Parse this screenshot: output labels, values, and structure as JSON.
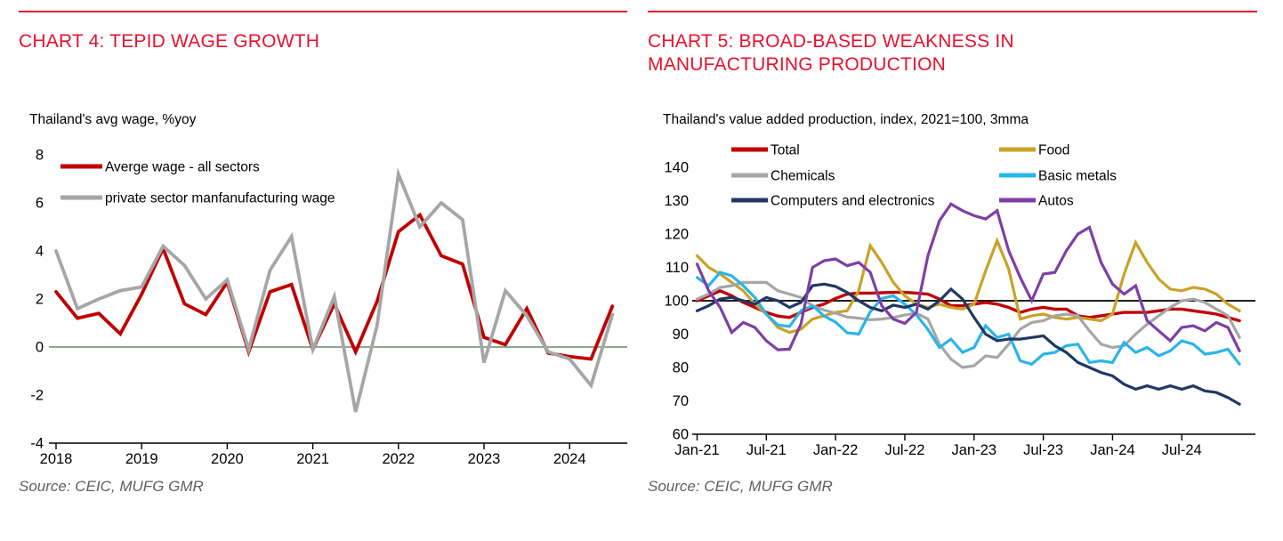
{
  "theme": {
    "accent_red": "#E8112D",
    "muted_gray": "#5F5F5F",
    "axis_black": "#000000",
    "background": "#FFFFFF"
  },
  "source_line": "Source: CEIC, MUFG GMR",
  "chart_data": [
    {
      "type": "line",
      "title": "CHART 4: TEPID WAGE GROWTH",
      "subtitle": "Thailand's avg wage, %yoy",
      "source": "Source: CEIC, MUFG GMR",
      "xlabel": "",
      "ylabel": "",
      "ylim": [
        -4,
        8
      ],
      "ytick_values": [
        8,
        6,
        4,
        2,
        0,
        -2,
        -4
      ],
      "x_tick_labels": [
        "2018",
        "2019",
        "2020",
        "2021",
        "2022",
        "2023",
        "2024"
      ],
      "x_tick_every": 4,
      "grid": false,
      "legend_position": "top-left-inside",
      "reference_line": {
        "value": 0,
        "color": "#7E9A85"
      },
      "categories": [
        "2018Q1",
        "2018Q2",
        "2018Q3",
        "2018Q4",
        "2019Q1",
        "2019Q2",
        "2019Q3",
        "2019Q4",
        "2020Q1",
        "2020Q2",
        "2020Q3",
        "2020Q4",
        "2021Q1",
        "2021Q2",
        "2021Q3",
        "2021Q4",
        "2022Q1",
        "2022Q2",
        "2022Q3",
        "2022Q4",
        "2023Q1",
        "2023Q2",
        "2023Q3",
        "2023Q4",
        "2024Q1",
        "2024Q2",
        "2024Q3"
      ],
      "series": [
        {
          "name": "Averge wage - all sectors",
          "color": "#C00000",
          "width": 3.8,
          "values": [
            2.3,
            1.2,
            1.4,
            0.55,
            2.2,
            4.1,
            1.8,
            1.35,
            2.7,
            -0.2,
            2.3,
            2.6,
            -0.1,
            1.8,
            -0.2,
            1.9,
            4.8,
            5.5,
            3.8,
            3.45,
            0.4,
            0.1,
            1.6,
            -0.25,
            -0.4,
            -0.5,
            1.7
          ]
        },
        {
          "name": "private sector manfanufacturing wage",
          "color": "#A6A6A6",
          "width": 3.8,
          "values": [
            4.0,
            1.6,
            2.0,
            2.35,
            2.5,
            4.2,
            3.4,
            2.0,
            2.8,
            -0.1,
            3.2,
            4.6,
            -0.1,
            2.1,
            -2.7,
            0.9,
            7.2,
            5.0,
            6.0,
            5.3,
            -0.65,
            2.35,
            1.3,
            -0.2,
            -0.5,
            -1.6,
            1.35
          ]
        }
      ]
    },
    {
      "type": "line",
      "title": "CHART 5: BROAD-BASED WEAKNESS IN MANUFACTURING PRODUCTION",
      "subtitle": "Thailand's value added production, index, 2021=100, 3mma",
      "source": "Source: CEIC, MUFG GMR",
      "xlabel": "",
      "ylabel": "",
      "ylim": [
        60,
        140
      ],
      "ytick_values": [
        140,
        130,
        120,
        110,
        100,
        90,
        80,
        70,
        60
      ],
      "x_tick_labels": [
        "Jan-21",
        "Jul-21",
        "Jan-22",
        "Jul-22",
        "Jan-23",
        "Jul-23",
        "Jan-24",
        "Jul-24"
      ],
      "x_tick_every": 6,
      "grid": false,
      "legend_position": "top-two-columns",
      "legend_columns": [
        [
          0,
          2,
          4
        ],
        [
          1,
          3,
          5
        ]
      ],
      "reference_line": {
        "value": 100,
        "color": "#000000"
      },
      "categories": [
        "Jan-21",
        "Feb-21",
        "Mar-21",
        "Apr-21",
        "May-21",
        "Jun-21",
        "Jul-21",
        "Aug-21",
        "Sep-21",
        "Oct-21",
        "Nov-21",
        "Dec-21",
        "Jan-22",
        "Feb-22",
        "Mar-22",
        "Apr-22",
        "May-22",
        "Jun-22",
        "Jul-22",
        "Aug-22",
        "Sep-22",
        "Oct-22",
        "Nov-22",
        "Dec-22",
        "Jan-23",
        "Feb-23",
        "Mar-23",
        "Apr-23",
        "May-23",
        "Jun-23",
        "Jul-23",
        "Aug-23",
        "Sep-23",
        "Oct-23",
        "Nov-23",
        "Dec-23",
        "Jan-24",
        "Feb-24",
        "Mar-24",
        "Apr-24",
        "May-24",
        "Jun-24",
        "Jul-24",
        "Aug-24",
        "Sep-24",
        "Oct-24",
        "Nov-24",
        "Dec-24"
      ],
      "series": [
        {
          "name": "Total",
          "color": "#C00000",
          "width": 3.4,
          "values": [
            100,
            101.5,
            103,
            101.5,
            99.5,
            98,
            96.5,
            95.4,
            95,
            96.5,
            98,
            99,
            100.7,
            102,
            102.3,
            102.3,
            102.4,
            102.5,
            102.5,
            102.3,
            102,
            100.5,
            98.5,
            98.5,
            99,
            99.5,
            99,
            98,
            96.5,
            97.5,
            98,
            97.5,
            97.5,
            95.5,
            95,
            95.5,
            96,
            96.5,
            96.5,
            96.5,
            97,
            97.5,
            97.5,
            97,
            96.5,
            96,
            95,
            94
          ]
        },
        {
          "name": "Food",
          "color": "#C9A227",
          "width": 3.2,
          "values": [
            113.5,
            110,
            108,
            105.5,
            103,
            99,
            96,
            92,
            90.5,
            91.5,
            94.5,
            95.5,
            96.5,
            97,
            103,
            116.5,
            111.5,
            105.5,
            101.5,
            99,
            98,
            99,
            98,
            97.5,
            99,
            109,
            118,
            109.5,
            94.5,
            95.5,
            96,
            95,
            94.5,
            95,
            94.5,
            94,
            96,
            108,
            117.5,
            111.5,
            106.5,
            103.5,
            103,
            104,
            103.5,
            102,
            99,
            97
          ]
        },
        {
          "name": "Chemicals",
          "color": "#A6A6A6",
          "width": 3.2,
          "values": [
            100.5,
            102,
            104,
            104.5,
            105.5,
            105.5,
            105.5,
            103,
            102,
            101,
            98.5,
            97.2,
            96.3,
            95.1,
            94.8,
            94.3,
            94.5,
            95,
            95.7,
            96.3,
            94.5,
            87,
            82.5,
            80,
            80.5,
            83.5,
            83,
            87,
            91.5,
            93.5,
            94,
            95.5,
            96,
            95.5,
            91,
            87,
            86,
            86.5,
            90,
            93,
            95.5,
            98,
            100,
            100.5,
            99.5,
            97.5,
            95.5,
            89
          ]
        },
        {
          "name": "Basic metals",
          "color": "#29B5EA",
          "width": 3.2,
          "values": [
            107,
            104.5,
            108.5,
            107.5,
            104.5,
            101,
            96,
            92.7,
            92.3,
            97,
            98.5,
            95.4,
            93.6,
            90.4,
            90,
            96.7,
            100.7,
            101.5,
            99,
            95.8,
            91.4,
            86,
            88.5,
            84.5,
            86,
            92.5,
            89,
            90,
            82,
            81,
            84,
            84.5,
            86.5,
            87,
            81.5,
            82,
            81.5,
            87.5,
            84.5,
            86,
            83.5,
            85,
            88,
            87,
            84,
            84.5,
            85.5,
            81
          ]
        },
        {
          "name": "Computers and electronics",
          "color": "#1F3864",
          "width": 3.2,
          "values": [
            97,
            98.5,
            100.5,
            101,
            100,
            99,
            101,
            100,
            98,
            99.5,
            104.5,
            105,
            104.3,
            102.5,
            100,
            98,
            97,
            98.7,
            98,
            99,
            97.5,
            100,
            103.5,
            100.5,
            95,
            90,
            88,
            88.5,
            88.5,
            89,
            89.5,
            86.5,
            84.5,
            81.5,
            80,
            78.5,
            77.5,
            75,
            73.5,
            74.5,
            73.5,
            74.5,
            73.5,
            74.5,
            73,
            72.5,
            71,
            69
          ]
        },
        {
          "name": "Autos",
          "color": "#7D3FA5",
          "width": 3.2,
          "values": [
            111,
            103,
            98,
            90.5,
            93.5,
            92,
            88,
            85.3,
            85.5,
            93,
            110,
            112,
            112.5,
            110.5,
            111.5,
            108.5,
            98.5,
            94.5,
            93.2,
            96.5,
            113.5,
            124,
            129,
            127,
            125.5,
            124.5,
            127,
            115,
            107,
            100,
            108,
            108.5,
            115,
            120,
            122,
            111.5,
            105,
            102,
            104.5,
            94,
            91,
            88,
            92,
            92.5,
            91,
            93.5,
            92,
            85
          ]
        }
      ]
    }
  ]
}
